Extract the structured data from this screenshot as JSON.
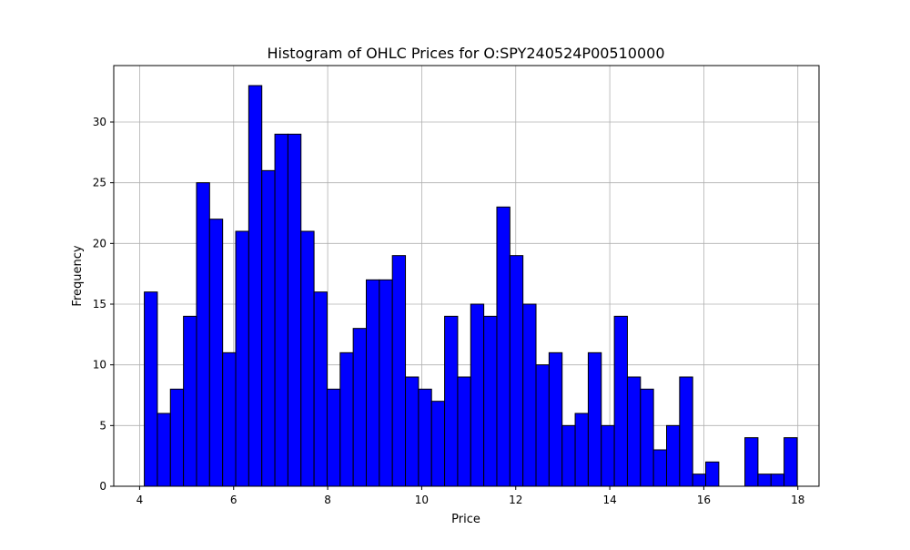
{
  "chart_data": {
    "type": "bar",
    "title": "Histogram of OHLC Prices for O:SPY240524P00510000",
    "xlabel": "Price",
    "ylabel": "Frequency",
    "xlim": [
      3.45,
      18.45
    ],
    "ylim": [
      0,
      34.65
    ],
    "bin_start": 4.1,
    "bin_width": 0.2777,
    "values": [
      16,
      6,
      8,
      14,
      25,
      22,
      11,
      21,
      33,
      26,
      29,
      29,
      21,
      16,
      8,
      11,
      13,
      17,
      17,
      19,
      9,
      8,
      7,
      14,
      9,
      15,
      14,
      23,
      19,
      15,
      10,
      11,
      5,
      6,
      11,
      5,
      14,
      9,
      8,
      3,
      5,
      9,
      1,
      2,
      0,
      0,
      4,
      1,
      1,
      4
    ],
    "x_ticks": [
      4,
      6,
      8,
      10,
      12,
      14,
      16,
      18
    ],
    "y_ticks": [
      0,
      5,
      10,
      15,
      20,
      25,
      30
    ],
    "grid": true,
    "colors": {
      "bar_fill": "#0000ff",
      "bar_edge": "#000000",
      "grid": "#b0b0b0",
      "axes": "#000000"
    }
  }
}
